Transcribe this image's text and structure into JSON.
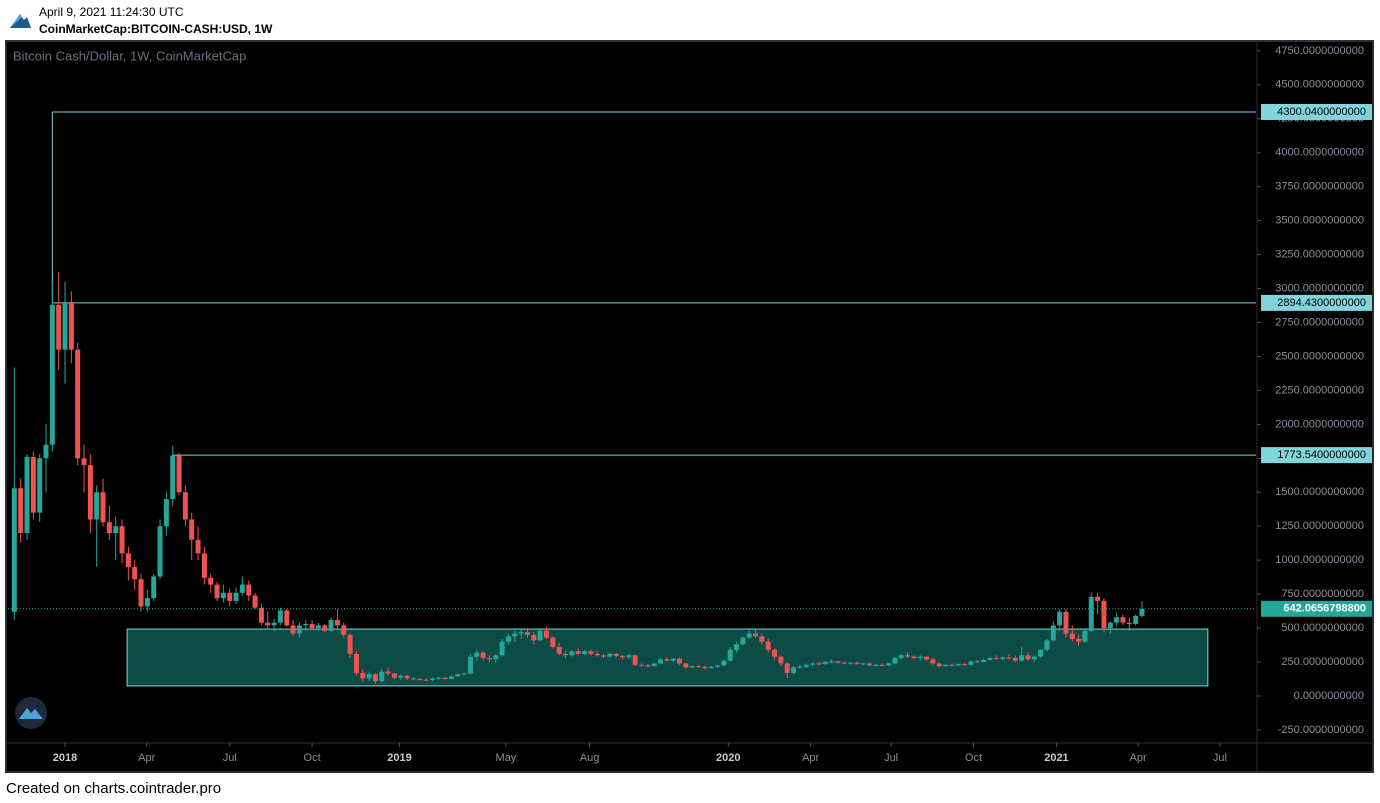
{
  "header": {
    "timestamp": "April 9, 2021 11:24:30 UTC",
    "symbol": "CoinMarketCap:BITCOIN-CASH:USD, 1W"
  },
  "footer": "Created on charts.cointrader.pro",
  "chart_data": {
    "type": "candlestick",
    "title": "Bitcoin Cash/Dollar, 1W, CoinMarketCap",
    "up_color": "#26a69a",
    "down_color": "#ef5350",
    "level_color": "#80d4dc",
    "zone_color": "#0d4b47",
    "grid": false,
    "xlim": [
      -1,
      196
    ],
    "ylim": [
      -346,
      4808
    ],
    "xticks": [
      {
        "value": 8,
        "label": "2018"
      },
      {
        "value": 20.9,
        "label": "Apr"
      },
      {
        "value": 34,
        "label": "Jul"
      },
      {
        "value": 47,
        "label": "Oct"
      },
      {
        "value": 60.8,
        "label": "2019"
      },
      {
        "value": 77.6,
        "label": "May"
      },
      {
        "value": 90.8,
        "label": "Aug"
      },
      {
        "value": 112.7,
        "label": "2020"
      },
      {
        "value": 125.7,
        "label": "Apr"
      },
      {
        "value": 138.4,
        "label": "Jul"
      },
      {
        "value": 151.4,
        "label": "Oct"
      },
      {
        "value": 164.5,
        "label": "2021"
      },
      {
        "value": 177.4,
        "label": "Apr"
      },
      {
        "value": 190.3,
        "label": "Jul"
      }
    ],
    "yticks": [
      {
        "value": -250,
        "label": "-250.0000000000"
      },
      {
        "value": 0,
        "label": "0.0000000000"
      },
      {
        "value": 250,
        "label": "250.0000000000"
      },
      {
        "value": 500,
        "label": "500.0000000000"
      },
      {
        "value": 750,
        "label": "750.0000000000"
      },
      {
        "value": 1000,
        "label": "1000.0000000000"
      },
      {
        "value": 1250,
        "label": "1250.0000000000"
      },
      {
        "value": 1500,
        "label": "1500.0000000000"
      },
      {
        "value": 1750,
        "label": "1750.0000000000"
      },
      {
        "value": 2000,
        "label": "2000.0000000000"
      },
      {
        "value": 2250,
        "label": "2250.0000000000"
      },
      {
        "value": 2500,
        "label": "2500.0000000000"
      },
      {
        "value": 2750,
        "label": "2750.0000000000"
      },
      {
        "value": 3000,
        "label": "3000.0000000000"
      },
      {
        "value": 3250,
        "label": "3250.0000000000"
      },
      {
        "value": 3500,
        "label": "3500.0000000000"
      },
      {
        "value": 3750,
        "label": "3750.0000000000"
      },
      {
        "value": 4000,
        "label": "4000.0000000000"
      },
      {
        "value": 4250,
        "label": "4250.0000000000"
      },
      {
        "value": 4500,
        "label": "4500.0000000000"
      },
      {
        "value": 4750,
        "label": "4750.0000000000"
      }
    ],
    "levels": [
      {
        "value": 4300.04,
        "label": "4300.0400000000",
        "from": 6
      },
      {
        "value": 2894.43,
        "label": "2894.4300000000",
        "from": 6
      },
      {
        "value": 1773.54,
        "label": "1773.5400000000",
        "from": 25
      }
    ],
    "zone": {
      "x": [
        17.8,
        188.4
      ],
      "y": [
        74,
        493
      ]
    },
    "last_price": {
      "value": 642.06567988,
      "label": "642.0656798800"
    },
    "ohlc": [
      [
        620,
        2420,
        560,
        1530
      ],
      [
        1530,
        1600,
        1130,
        1200
      ],
      [
        1200,
        1780,
        1150,
        1760
      ],
      [
        1760,
        1800,
        1300,
        1350
      ],
      [
        1350,
        1780,
        1280,
        1750
      ],
      [
        1750,
        2000,
        1500,
        1850
      ],
      [
        1850,
        3050,
        1800,
        2880
      ],
      [
        2880,
        3120,
        2400,
        2550
      ],
      [
        2550,
        3050,
        2300,
        2900
      ],
      [
        2900,
        2980,
        2450,
        2550
      ],
      [
        2550,
        2600,
        1700,
        1750
      ],
      [
        1750,
        1850,
        1500,
        1700
      ],
      [
        1700,
        1780,
        1200,
        1300
      ],
      [
        1300,
        1550,
        950,
        1500
      ],
      [
        1500,
        1600,
        1250,
        1280
      ],
      [
        1280,
        1400,
        1150,
        1200
      ],
      [
        1200,
        1320,
        1000,
        1250
      ],
      [
        1250,
        1300,
        980,
        1050
      ],
      [
        1050,
        1100,
        850,
        950
      ],
      [
        950,
        1000,
        780,
        860
      ],
      [
        860,
        900,
        620,
        660
      ],
      [
        660,
        780,
        620,
        720
      ],
      [
        720,
        900,
        700,
        880
      ],
      [
        880,
        1300,
        860,
        1250
      ],
      [
        1250,
        1500,
        1180,
        1450
      ],
      [
        1450,
        1840,
        1400,
        1770
      ],
      [
        1770,
        1790,
        1480,
        1500
      ],
      [
        1500,
        1550,
        1250,
        1300
      ],
      [
        1300,
        1350,
        1000,
        1150
      ],
      [
        1150,
        1250,
        1000,
        1050
      ],
      [
        1050,
        1100,
        820,
        870
      ],
      [
        870,
        900,
        760,
        820
      ],
      [
        820,
        840,
        700,
        720
      ],
      [
        720,
        820,
        690,
        760
      ],
      [
        760,
        790,
        660,
        700
      ],
      [
        700,
        800,
        680,
        760
      ],
      [
        760,
        880,
        740,
        820
      ],
      [
        820,
        850,
        700,
        740
      ],
      [
        740,
        760,
        640,
        650
      ],
      [
        650,
        680,
        520,
        540
      ],
      [
        540,
        620,
        490,
        520
      ],
      [
        520,
        570,
        480,
        540
      ],
      [
        540,
        650,
        520,
        630
      ],
      [
        630,
        640,
        510,
        520
      ],
      [
        520,
        560,
        440,
        460
      ],
      [
        460,
        540,
        430,
        520
      ],
      [
        520,
        560,
        480,
        530
      ],
      [
        530,
        560,
        490,
        500
      ],
      [
        500,
        540,
        480,
        520
      ],
      [
        520,
        530,
        470,
        480
      ],
      [
        480,
        580,
        470,
        560
      ],
      [
        560,
        640,
        500,
        520
      ],
      [
        520,
        540,
        430,
        450
      ],
      [
        450,
        460,
        280,
        310
      ],
      [
        310,
        330,
        150,
        170
      ],
      [
        170,
        200,
        110,
        130
      ],
      [
        130,
        180,
        110,
        160
      ],
      [
        160,
        170,
        90,
        110
      ],
      [
        110,
        200,
        100,
        180
      ],
      [
        180,
        210,
        150,
        165
      ],
      [
        165,
        170,
        125,
        135
      ],
      [
        135,
        160,
        120,
        150
      ],
      [
        150,
        155,
        120,
        130
      ],
      [
        130,
        140,
        115,
        125
      ],
      [
        125,
        135,
        115,
        120
      ],
      [
        120,
        130,
        110,
        118
      ],
      [
        118,
        135,
        110,
        128
      ],
      [
        128,
        140,
        120,
        135
      ],
      [
        135,
        140,
        120,
        125
      ],
      [
        125,
        150,
        122,
        145
      ],
      [
        145,
        165,
        140,
        160
      ],
      [
        160,
        175,
        150,
        165
      ],
      [
        165,
        310,
        160,
        290
      ],
      [
        290,
        340,
        260,
        320
      ],
      [
        320,
        330,
        260,
        280
      ],
      [
        280,
        300,
        250,
        270
      ],
      [
        270,
        310,
        240,
        300
      ],
      [
        300,
        420,
        290,
        400
      ],
      [
        400,
        460,
        380,
        440
      ],
      [
        440,
        480,
        400,
        460
      ],
      [
        460,
        500,
        420,
        470
      ],
      [
        470,
        500,
        430,
        450
      ],
      [
        450,
        470,
        380,
        410
      ],
      [
        410,
        500,
        400,
        480
      ],
      [
        480,
        510,
        420,
        430
      ],
      [
        430,
        440,
        350,
        360
      ],
      [
        360,
        390,
        300,
        310
      ],
      [
        310,
        330,
        280,
        300
      ],
      [
        300,
        340,
        290,
        330
      ],
      [
        330,
        350,
        300,
        310
      ],
      [
        310,
        340,
        300,
        330
      ],
      [
        330,
        340,
        300,
        310
      ],
      [
        310,
        330,
        290,
        300
      ],
      [
        300,
        310,
        280,
        290
      ],
      [
        290,
        320,
        280,
        310
      ],
      [
        310,
        320,
        285,
        295
      ],
      [
        295,
        300,
        270,
        285
      ],
      [
        285,
        310,
        270,
        300
      ],
      [
        300,
        305,
        220,
        230
      ],
      [
        230,
        240,
        215,
        225
      ],
      [
        225,
        235,
        210,
        220
      ],
      [
        220,
        245,
        215,
        240
      ],
      [
        240,
        280,
        235,
        270
      ],
      [
        270,
        285,
        255,
        260
      ],
      [
        260,
        280,
        250,
        275
      ],
      [
        275,
        280,
        230,
        240
      ],
      [
        240,
        245,
        200,
        210
      ],
      [
        210,
        225,
        205,
        220
      ],
      [
        220,
        230,
        210,
        215
      ],
      [
        215,
        220,
        195,
        205
      ],
      [
        205,
        220,
        200,
        215
      ],
      [
        215,
        230,
        205,
        225
      ],
      [
        225,
        270,
        220,
        260
      ],
      [
        260,
        360,
        255,
        340
      ],
      [
        340,
        400,
        320,
        380
      ],
      [
        380,
        440,
        370,
        430
      ],
      [
        430,
        480,
        420,
        460
      ],
      [
        460,
        500,
        430,
        440
      ],
      [
        440,
        460,
        380,
        400
      ],
      [
        400,
        420,
        320,
        340
      ],
      [
        340,
        350,
        270,
        290
      ],
      [
        290,
        300,
        220,
        240
      ],
      [
        240,
        250,
        130,
        170
      ],
      [
        170,
        220,
        160,
        210
      ],
      [
        210,
        230,
        200,
        215
      ],
      [
        215,
        240,
        205,
        230
      ],
      [
        230,
        250,
        220,
        240
      ],
      [
        240,
        250,
        225,
        235
      ],
      [
        235,
        260,
        230,
        250
      ],
      [
        250,
        270,
        240,
        255
      ],
      [
        255,
        260,
        235,
        245
      ],
      [
        245,
        255,
        235,
        240
      ],
      [
        240,
        250,
        230,
        245
      ],
      [
        245,
        255,
        230,
        235
      ],
      [
        235,
        245,
        225,
        240
      ],
      [
        240,
        245,
        220,
        225
      ],
      [
        225,
        235,
        215,
        230
      ],
      [
        230,
        240,
        220,
        225
      ],
      [
        225,
        245,
        220,
        240
      ],
      [
        240,
        290,
        235,
        280
      ],
      [
        280,
        310,
        270,
        300
      ],
      [
        300,
        320,
        280,
        290
      ],
      [
        290,
        300,
        270,
        280
      ],
      [
        280,
        300,
        260,
        290
      ],
      [
        290,
        295,
        260,
        270
      ],
      [
        270,
        280,
        230,
        240
      ],
      [
        240,
        250,
        210,
        220
      ],
      [
        220,
        235,
        215,
        230
      ],
      [
        230,
        240,
        215,
        225
      ],
      [
        225,
        240,
        220,
        235
      ],
      [
        235,
        245,
        225,
        230
      ],
      [
        230,
        260,
        225,
        255
      ],
      [
        255,
        265,
        245,
        250
      ],
      [
        250,
        275,
        245,
        265
      ],
      [
        265,
        290,
        260,
        280
      ],
      [
        280,
        300,
        265,
        275
      ],
      [
        275,
        290,
        260,
        285
      ],
      [
        285,
        310,
        270,
        280
      ],
      [
        280,
        300,
        250,
        260
      ],
      [
        260,
        360,
        255,
        300
      ],
      [
        300,
        320,
        260,
        270
      ],
      [
        270,
        300,
        250,
        290
      ],
      [
        290,
        345,
        280,
        340
      ],
      [
        340,
        420,
        330,
        410
      ],
      [
        410,
        550,
        400,
        520
      ],
      [
        520,
        640,
        480,
        620
      ],
      [
        620,
        640,
        430,
        460
      ],
      [
        460,
        520,
        400,
        420
      ],
      [
        420,
        450,
        370,
        400
      ],
      [
        400,
        500,
        390,
        480
      ],
      [
        480,
        760,
        470,
        730
      ],
      [
        730,
        760,
        600,
        700
      ],
      [
        700,
        720,
        470,
        500
      ],
      [
        500,
        550,
        460,
        540
      ],
      [
        540,
        610,
        510,
        580
      ],
      [
        580,
        600,
        520,
        540
      ],
      [
        540,
        580,
        480,
        530
      ],
      [
        530,
        600,
        520,
        590
      ],
      [
        590,
        700,
        580,
        642.07
      ]
    ]
  }
}
